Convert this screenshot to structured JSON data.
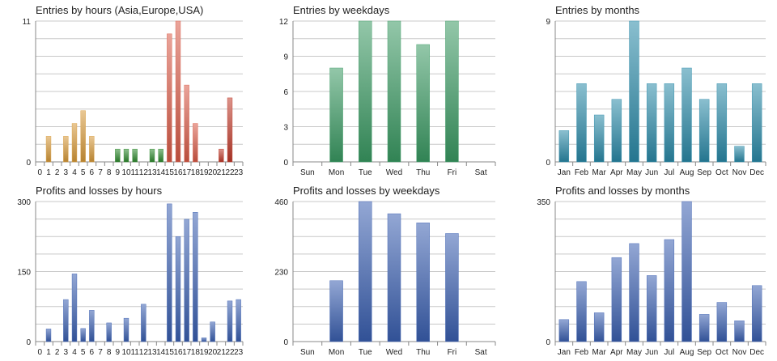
{
  "chart_data": [
    {
      "type": "bar",
      "title": "Entries by hours (Asia,Europe,USA)",
      "xlabel": "",
      "ylabel": "",
      "categories": [
        "0",
        "1",
        "2",
        "3",
        "4",
        "5",
        "6",
        "7",
        "8",
        "9",
        "10",
        "11",
        "12",
        "13",
        "14",
        "15",
        "16",
        "17",
        "18",
        "19",
        "20",
        "21",
        "22",
        "23"
      ],
      "values": [
        0,
        2,
        0,
        2,
        3,
        4,
        2,
        0,
        0,
        1,
        1,
        1,
        0,
        1,
        1,
        10,
        11,
        6,
        3,
        0,
        0,
        1,
        5,
        0
      ],
      "ylim": [
        0,
        11
      ],
      "yticks": [
        "0",
        "11"
      ],
      "grid": true,
      "colors": [
        "#9a6a10",
        "#d79a3a",
        "#d79a3a",
        "#d79a3a",
        "#d79a3a",
        "#d79a3a",
        "#d79a3a",
        "#d79a3a",
        "#d79a3a",
        "#2f8a2f",
        "#2f8a2f",
        "#2f8a2f",
        "#2f8a2f",
        "#2f8a2f",
        "#2f8a2f",
        "#d95a47",
        "#d95a47",
        "#d95a47",
        "#d95a47",
        "#c03a2a",
        "#c03a2a",
        "#c03a2a",
        "#c03a2a",
        "#c03a2a"
      ]
    },
    {
      "type": "bar",
      "title": "Entries by weekdays",
      "xlabel": "",
      "ylabel": "",
      "categories": [
        "Sun",
        "Mon",
        "Tue",
        "Wed",
        "Thu",
        "Fri",
        "Sat"
      ],
      "values": [
        0,
        8,
        12,
        12,
        10,
        12,
        0
      ],
      "ylim": [
        0,
        12
      ],
      "yticks": [
        "0",
        "3",
        "6",
        "9",
        "12"
      ],
      "grid": true,
      "colors": [
        "#3a9a63"
      ]
    },
    {
      "type": "bar",
      "title": "Entries by months",
      "xlabel": "",
      "ylabel": "",
      "categories": [
        "Jan",
        "Feb",
        "Mar",
        "Apr",
        "May",
        "Jun",
        "Jul",
        "Aug",
        "Sep",
        "Oct",
        "Nov",
        "Dec"
      ],
      "values": [
        2,
        5,
        3,
        4,
        9,
        5,
        5,
        6,
        4,
        5,
        1,
        5
      ],
      "ylim": [
        0,
        9
      ],
      "yticks": [
        "0",
        "9"
      ],
      "grid": true,
      "colors": [
        "#2a8aa8"
      ]
    },
    {
      "type": "bar",
      "title": "Profits and losses by hours",
      "xlabel": "",
      "ylabel": "",
      "categories": [
        "0",
        "1",
        "2",
        "3",
        "4",
        "5",
        "6",
        "7",
        "8",
        "9",
        "10",
        "11",
        "12",
        "13",
        "14",
        "15",
        "16",
        "17",
        "18",
        "19",
        "20",
        "21",
        "22",
        "23"
      ],
      "values": [
        0,
        27,
        0,
        90,
        145,
        28,
        67,
        0,
        40,
        0,
        50,
        0,
        80,
        0,
        0,
        295,
        225,
        262,
        277,
        8,
        42,
        0,
        87,
        90
      ],
      "ylim": [
        0,
        300
      ],
      "yticks": [
        "0",
        "150",
        "300"
      ],
      "grid": true,
      "colors": [
        "#3a5fb0"
      ]
    },
    {
      "type": "bar",
      "title": "Profits and losses by weekdays",
      "xlabel": "",
      "ylabel": "",
      "categories": [
        "Sun",
        "Mon",
        "Tue",
        "Wed",
        "Thu",
        "Fri",
        "Sat"
      ],
      "values": [
        0,
        200,
        460,
        420,
        390,
        355,
        0
      ],
      "ylim": [
        0,
        460
      ],
      "yticks": [
        "0",
        "230",
        "460"
      ],
      "grid": true,
      "colors": [
        "#3a5fb0"
      ]
    },
    {
      "type": "bar",
      "title": "Profits and losses by months",
      "xlabel": "",
      "ylabel": "",
      "categories": [
        "Jan",
        "Feb",
        "Mar",
        "Apr",
        "May",
        "Jun",
        "Jul",
        "Aug",
        "Sep",
        "Oct",
        "Nov",
        "Dec"
      ],
      "values": [
        55,
        150,
        72,
        210,
        245,
        165,
        255,
        350,
        68,
        98,
        52,
        140
      ],
      "ylim": [
        0,
        350
      ],
      "yticks": [
        "0",
        "350"
      ],
      "grid": true,
      "colors": [
        "#3a5fb0"
      ]
    }
  ]
}
